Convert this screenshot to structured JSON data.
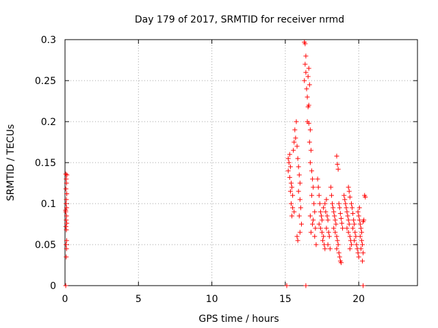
{
  "chart_data": {
    "type": "scatter",
    "title": "Day 179 of 2017, SRMTID for receiver nrmd",
    "xlabel": "GPS time / hours",
    "ylabel": "SRMTID / TECUs",
    "xlim": [
      0,
      24
    ],
    "ylim": [
      0,
      0.3
    ],
    "x_ticks": [
      0,
      5,
      10,
      15,
      20
    ],
    "x_tick_labels": [
      "0",
      "5",
      "10",
      "15",
      "20"
    ],
    "y_ticks": [
      0,
      0.05,
      0.1,
      0.15,
      0.2,
      0.25,
      0.3
    ],
    "y_tick_labels": [
      "0",
      "0.05",
      "0.1",
      "0.15",
      "0.2",
      "0.25",
      "0.3"
    ],
    "grid": true,
    "marker": "+",
    "color": "#ff0000",
    "series": [
      {
        "name": "SRMTID",
        "points": [
          [
            0.05,
            0.136
          ],
          [
            0.08,
            0.13
          ],
          [
            0.1,
            0.125
          ],
          [
            0.06,
            0.118
          ],
          [
            0.12,
            0.112
          ],
          [
            0.09,
            0.105
          ],
          [
            0.07,
            0.1
          ],
          [
            0.11,
            0.095
          ],
          [
            0.05,
            0.09
          ],
          [
            0.1,
            0.085
          ],
          [
            0.08,
            0.08
          ],
          [
            0.12,
            0.076
          ],
          [
            0.06,
            0.072
          ],
          [
            0.09,
            0.068
          ],
          [
            0.11,
            0.055
          ],
          [
            0.07,
            0.05
          ],
          [
            0.1,
            0.045
          ],
          [
            0.08,
            0.035
          ],
          [
            0.13,
            0.135
          ],
          [
            0.04,
            0.092
          ],
          [
            0.05,
            0.0
          ],
          [
            15.1,
            0.0
          ],
          [
            16.4,
            0.0
          ],
          [
            20.3,
            0.0
          ],
          [
            15.2,
            0.155
          ],
          [
            15.25,
            0.15
          ],
          [
            15.3,
            0.16
          ],
          [
            15.35,
            0.145
          ],
          [
            15.2,
            0.14
          ],
          [
            15.3,
            0.132
          ],
          [
            15.4,
            0.125
          ],
          [
            15.45,
            0.12
          ],
          [
            15.35,
            0.115
          ],
          [
            15.5,
            0.11
          ],
          [
            15.4,
            0.1
          ],
          [
            15.5,
            0.095
          ],
          [
            15.6,
            0.09
          ],
          [
            15.45,
            0.085
          ],
          [
            15.55,
            0.165
          ],
          [
            15.6,
            0.175
          ],
          [
            15.7,
            0.18
          ],
          [
            15.65,
            0.19
          ],
          [
            15.75,
            0.2
          ],
          [
            15.8,
            0.17
          ],
          [
            15.85,
            0.155
          ],
          [
            15.9,
            0.145
          ],
          [
            15.95,
            0.135
          ],
          [
            16.0,
            0.125
          ],
          [
            15.9,
            0.115
          ],
          [
            16.0,
            0.105
          ],
          [
            16.05,
            0.095
          ],
          [
            15.95,
            0.085
          ],
          [
            16.1,
            0.075
          ],
          [
            16.0,
            0.065
          ],
          [
            15.8,
            0.06
          ],
          [
            15.85,
            0.055
          ],
          [
            16.3,
            0.297
          ],
          [
            16.35,
            0.295
          ],
          [
            16.4,
            0.28
          ],
          [
            16.35,
            0.27
          ],
          [
            16.4,
            0.26
          ],
          [
            16.3,
            0.25
          ],
          [
            16.45,
            0.24
          ],
          [
            16.5,
            0.23
          ],
          [
            16.6,
            0.265
          ],
          [
            16.55,
            0.255
          ],
          [
            16.65,
            0.245
          ],
          [
            16.6,
            0.22
          ],
          [
            16.55,
            0.218
          ],
          [
            16.5,
            0.2
          ],
          [
            16.6,
            0.198
          ],
          [
            16.7,
            0.19
          ],
          [
            16.65,
            0.175
          ],
          [
            16.75,
            0.165
          ],
          [
            16.7,
            0.15
          ],
          [
            16.8,
            0.14
          ],
          [
            16.85,
            0.13
          ],
          [
            16.9,
            0.12
          ],
          [
            16.8,
            0.11
          ],
          [
            16.95,
            0.1
          ],
          [
            17.0,
            0.09
          ],
          [
            16.9,
            0.08
          ],
          [
            17.05,
            0.07
          ],
          [
            17.0,
            0.06
          ],
          [
            17.1,
            0.05
          ],
          [
            16.75,
            0.065
          ],
          [
            16.85,
            0.075
          ],
          [
            16.7,
            0.085
          ],
          [
            17.2,
            0.13
          ],
          [
            17.25,
            0.12
          ],
          [
            17.3,
            0.11
          ],
          [
            17.35,
            0.1
          ],
          [
            17.4,
            0.09
          ],
          [
            17.45,
            0.085
          ],
          [
            17.5,
            0.08
          ],
          [
            17.3,
            0.075
          ],
          [
            17.4,
            0.07
          ],
          [
            17.5,
            0.065
          ],
          [
            17.6,
            0.06
          ],
          [
            17.55,
            0.055
          ],
          [
            17.65,
            0.05
          ],
          [
            17.7,
            0.045
          ],
          [
            17.6,
            0.095
          ],
          [
            17.7,
            0.1
          ],
          [
            17.8,
            0.105
          ],
          [
            17.75,
            0.09
          ],
          [
            17.85,
            0.085
          ],
          [
            17.9,
            0.08
          ],
          [
            17.8,
            0.07
          ],
          [
            17.95,
            0.065
          ],
          [
            18.0,
            0.06
          ],
          [
            17.9,
            0.05
          ],
          [
            18.05,
            0.045
          ],
          [
            18.1,
            0.12
          ],
          [
            18.15,
            0.11
          ],
          [
            18.2,
            0.1
          ],
          [
            18.25,
            0.095
          ],
          [
            18.3,
            0.09
          ],
          [
            18.35,
            0.085
          ],
          [
            18.4,
            0.08
          ],
          [
            18.45,
            0.075
          ],
          [
            18.3,
            0.07
          ],
          [
            18.4,
            0.065
          ],
          [
            18.5,
            0.06
          ],
          [
            18.55,
            0.055
          ],
          [
            18.6,
            0.05
          ],
          [
            18.5,
            0.045
          ],
          [
            18.65,
            0.04
          ],
          [
            18.7,
            0.035
          ],
          [
            18.75,
            0.03
          ],
          [
            18.8,
            0.028
          ],
          [
            18.5,
            0.158
          ],
          [
            18.55,
            0.148
          ],
          [
            18.6,
            0.142
          ],
          [
            18.65,
            0.1
          ],
          [
            18.7,
            0.095
          ],
          [
            18.75,
            0.088
          ],
          [
            18.8,
            0.082
          ],
          [
            18.85,
            0.076
          ],
          [
            18.9,
            0.07
          ],
          [
            19.0,
            0.11
          ],
          [
            19.05,
            0.105
          ],
          [
            19.1,
            0.1
          ],
          [
            19.15,
            0.095
          ],
          [
            19.2,
            0.09
          ],
          [
            19.25,
            0.085
          ],
          [
            19.3,
            0.08
          ],
          [
            19.35,
            0.075
          ],
          [
            19.2,
            0.07
          ],
          [
            19.3,
            0.065
          ],
          [
            19.4,
            0.06
          ],
          [
            19.45,
            0.055
          ],
          [
            19.5,
            0.05
          ],
          [
            19.4,
            0.045
          ],
          [
            19.3,
            0.12
          ],
          [
            19.35,
            0.115
          ],
          [
            19.4,
            0.108
          ],
          [
            19.5,
            0.1
          ],
          [
            19.55,
            0.095
          ],
          [
            19.6,
            0.088
          ],
          [
            19.65,
            0.08
          ],
          [
            19.7,
            0.075
          ],
          [
            19.6,
            0.07
          ],
          [
            19.75,
            0.065
          ],
          [
            19.8,
            0.06
          ],
          [
            19.7,
            0.055
          ],
          [
            19.85,
            0.05
          ],
          [
            19.9,
            0.045
          ],
          [
            19.95,
            0.04
          ],
          [
            20.0,
            0.035
          ],
          [
            20.05,
            0.08
          ],
          [
            20.1,
            0.075
          ],
          [
            20.15,
            0.07
          ],
          [
            20.2,
            0.065
          ],
          [
            20.1,
            0.06
          ],
          [
            20.2,
            0.055
          ],
          [
            20.25,
            0.05
          ],
          [
            20.15,
            0.045
          ],
          [
            20.3,
            0.04
          ],
          [
            20.25,
            0.03
          ],
          [
            20.3,
            0.078
          ],
          [
            20.35,
            0.08
          ],
          [
            20.4,
            0.11
          ],
          [
            20.45,
            0.108
          ],
          [
            20.0,
            0.085
          ],
          [
            19.95,
            0.09
          ],
          [
            20.05,
            0.095
          ]
        ]
      }
    ]
  }
}
